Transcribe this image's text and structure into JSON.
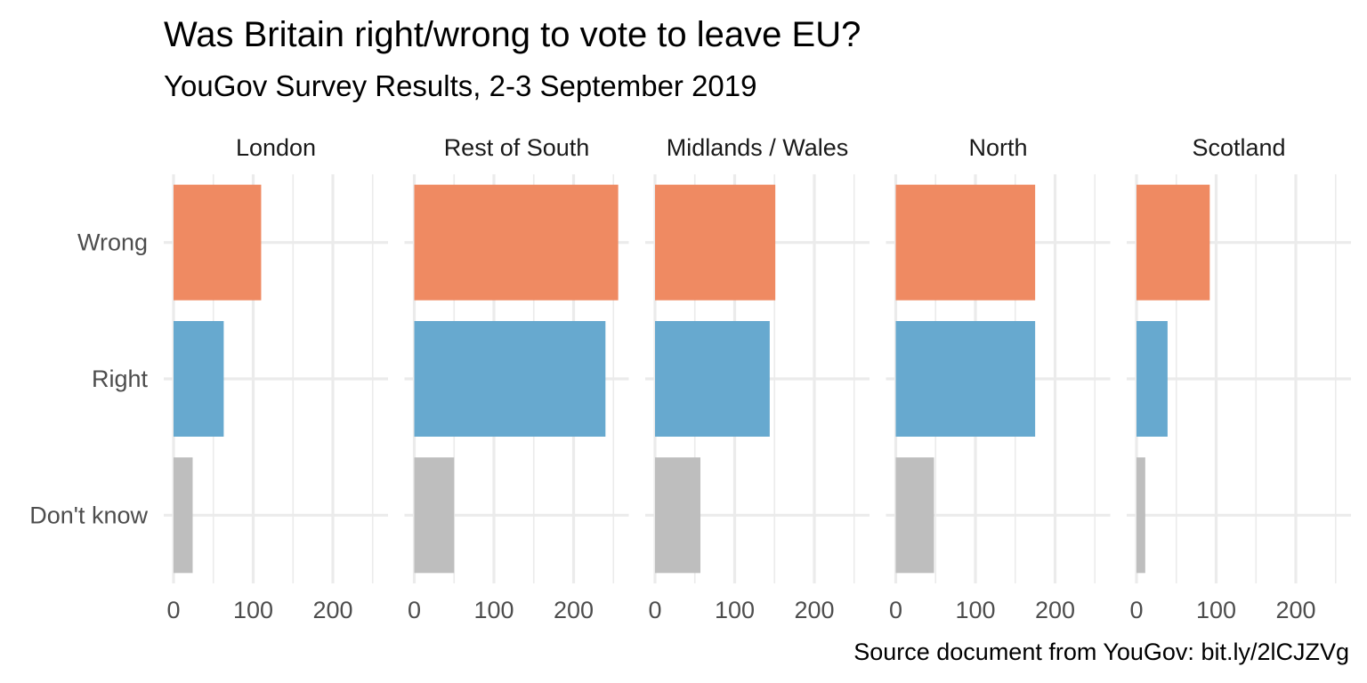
{
  "chart_data": {
    "type": "bar",
    "orientation": "horizontal",
    "faceted": true,
    "title": "Was Britain right/wrong to vote to leave EU?",
    "subtitle": "YouGov Survey Results, 2-3 September 2019",
    "caption": "Source document from YouGov: bit.ly/2lCJZVg",
    "categories": [
      "Wrong",
      "Right",
      "Don't know"
    ],
    "category_colors": {
      "Wrong": "#ef8a62",
      "Right": "#67a9cf",
      "Don't know": "#bebebe"
    },
    "xlim": [
      0,
      270
    ],
    "xticks": [
      "0",
      "100",
      "200"
    ],
    "xtick_values": [
      0,
      100,
      200
    ],
    "grid": true,
    "legend": "none",
    "panels": [
      {
        "name": "London",
        "values": [
          110,
          63,
          24
        ]
      },
      {
        "name": "Rest of South",
        "values": [
          256,
          240,
          50
        ]
      },
      {
        "name": "Midlands / Wales",
        "values": [
          151,
          144,
          57
        ]
      },
      {
        "name": "North",
        "values": [
          175,
          175,
          48
        ]
      },
      {
        "name": "Scotland",
        "values": [
          92,
          39,
          11
        ]
      }
    ]
  }
}
